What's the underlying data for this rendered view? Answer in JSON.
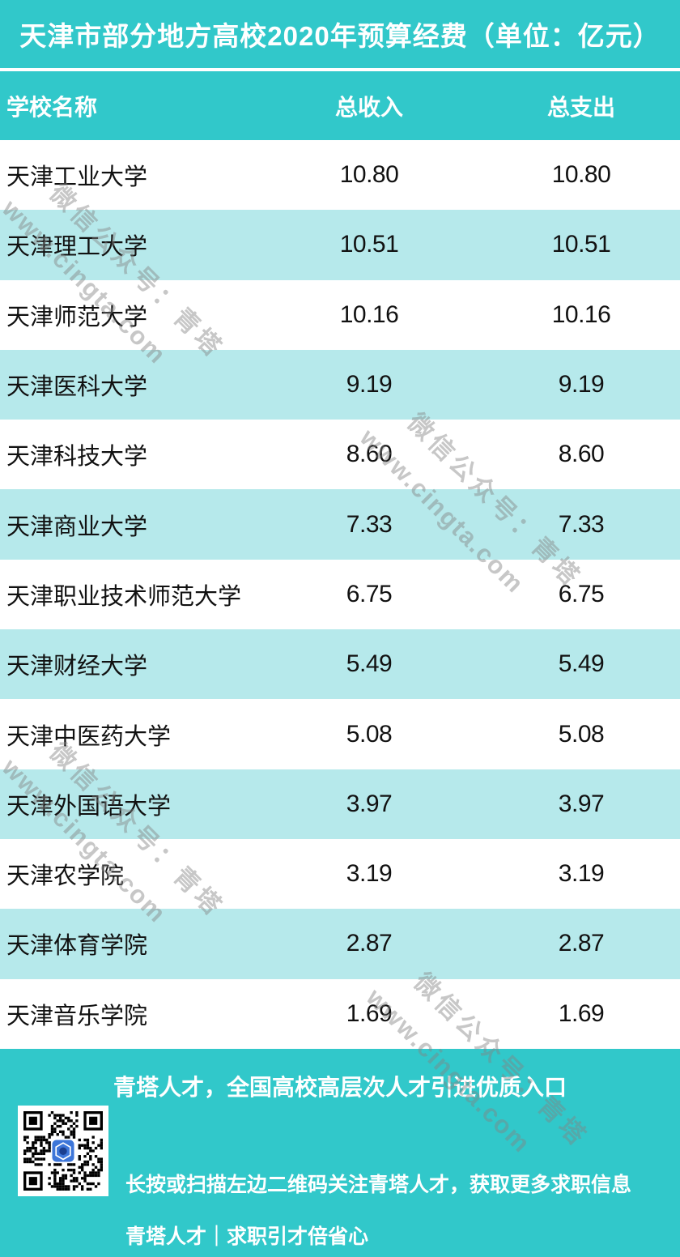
{
  "title": "天津市部分地方高校2020年预算经费（单位：亿元）",
  "table": {
    "columns": [
      "学校名称",
      "总收入",
      "总支出"
    ],
    "rows": [
      {
        "school": "天津工业大学",
        "income": "10.80",
        "expense": "10.80"
      },
      {
        "school": "天津理工大学",
        "income": "10.51",
        "expense": "10.51"
      },
      {
        "school": "天津师范大学",
        "income": "10.16",
        "expense": "10.16"
      },
      {
        "school": "天津医科大学",
        "income": "9.19",
        "expense": "9.19"
      },
      {
        "school": "天津科技大学",
        "income": "8.60",
        "expense": "8.60"
      },
      {
        "school": "天津商业大学",
        "income": "7.33",
        "expense": "7.33"
      },
      {
        "school": "天津职业技术师范大学",
        "income": "6.75",
        "expense": "6.75"
      },
      {
        "school": "天津财经大学",
        "income": "5.49",
        "expense": "5.49"
      },
      {
        "school": "天津中医药大学",
        "income": "5.08",
        "expense": "5.08"
      },
      {
        "school": "天津外国语大学",
        "income": "3.97",
        "expense": "3.97"
      },
      {
        "school": "天津农学院",
        "income": "3.19",
        "expense": "3.19"
      },
      {
        "school": "天津体育学院",
        "income": "2.87",
        "expense": "2.87"
      },
      {
        "school": "天津音乐学院",
        "income": "1.69",
        "expense": "1.69"
      }
    ]
  },
  "watermark": {
    "line_cn": "微信公众号：青塔",
    "line_en": "www.cingta.com"
  },
  "footer": {
    "line1": "青塔人才，全国高校高层次人才引进优质入口",
    "line2": "长按或扫描左边二维码关注青塔人才，获取更多求职信息",
    "line3": "青塔人才｜求职引才倍省心"
  },
  "colors": {
    "teal": "#31C8CA",
    "row_alt": "#B6E9EB",
    "text": "#111111",
    "qr_logo_blue": "#3D76D9",
    "watermark_gray": "#828282"
  },
  "chart_data": {
    "type": "table",
    "title": "天津市部分地方高校2020年预算经费（单位：亿元）",
    "columns": [
      "学校名称",
      "总收入",
      "总支出"
    ],
    "unit": "亿元",
    "rows": [
      [
        "天津工业大学",
        10.8,
        10.8
      ],
      [
        "天津理工大学",
        10.51,
        10.51
      ],
      [
        "天津师范大学",
        10.16,
        10.16
      ],
      [
        "天津医科大学",
        9.19,
        9.19
      ],
      [
        "天津科技大学",
        8.6,
        8.6
      ],
      [
        "天津商业大学",
        7.33,
        7.33
      ],
      [
        "天津职业技术师范大学",
        6.75,
        6.75
      ],
      [
        "天津财经大学",
        5.49,
        5.49
      ],
      [
        "天津中医药大学",
        5.08,
        5.08
      ],
      [
        "天津外国语大学",
        3.97,
        3.97
      ],
      [
        "天津农学院",
        3.19,
        3.19
      ],
      [
        "天津体育学院",
        2.87,
        2.87
      ],
      [
        "天津音乐学院",
        1.69,
        1.69
      ]
    ]
  }
}
